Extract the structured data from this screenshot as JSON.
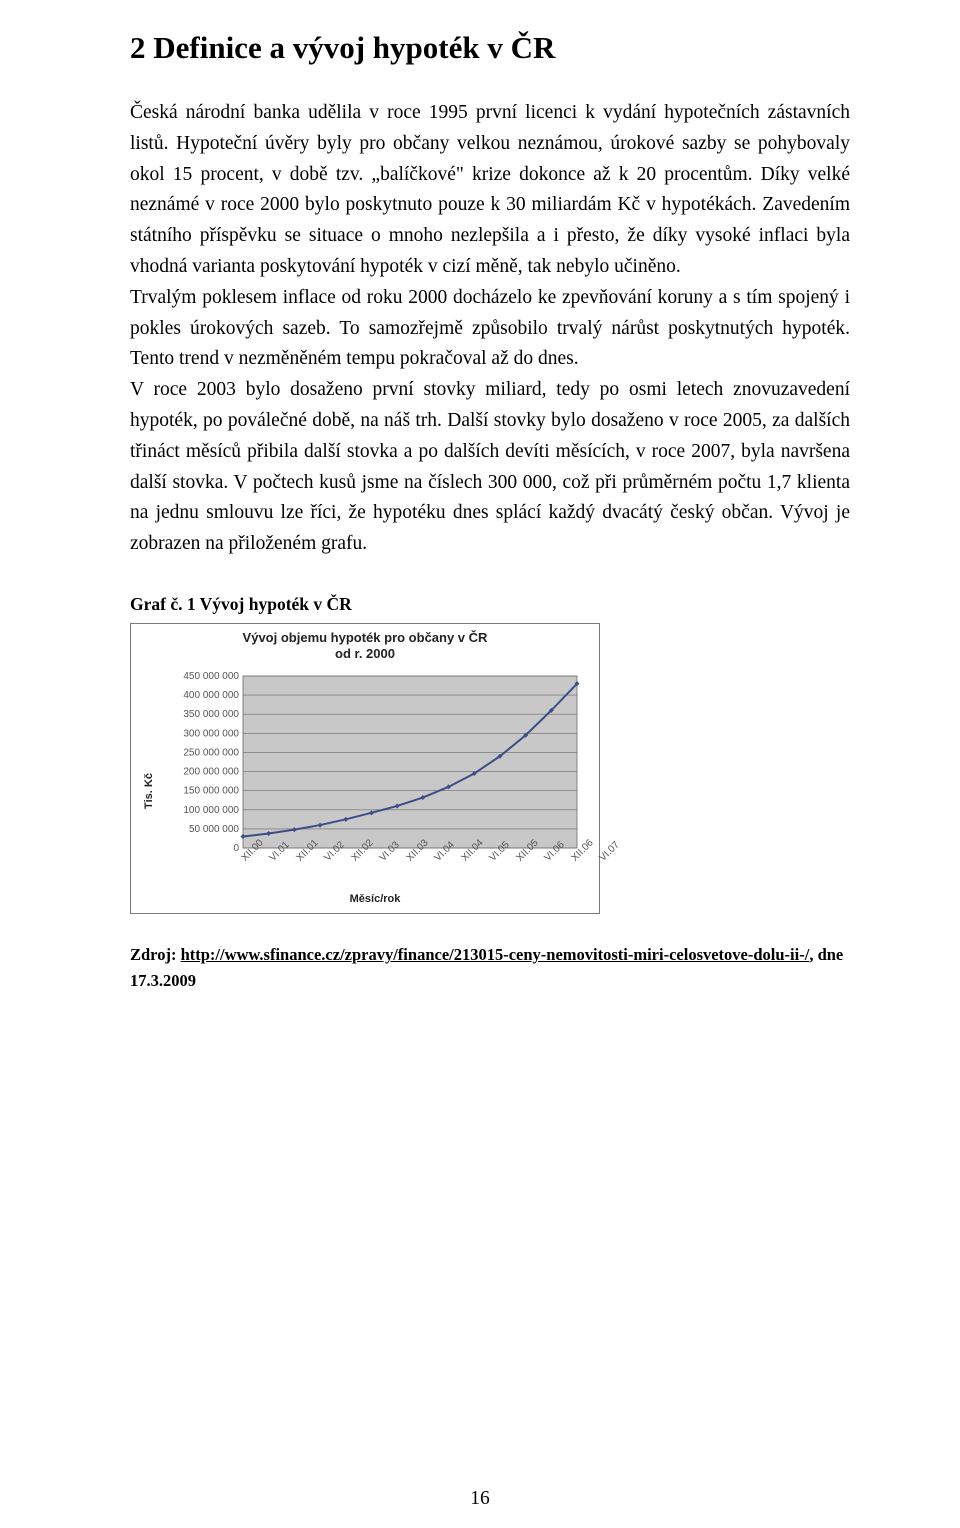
{
  "heading": "2  Definice a vývoj hypoték v ČR",
  "paragraphs": {
    "p1": "Česká národní banka udělila v roce 1995 první licenci k vydání hypotečních zástavních listů. Hypoteční úvěry byly pro občany velkou neznámou, úrokové sazby se pohybovaly okol 15 procent, v době tzv. „balíčkové\" krize dokonce až k 20 procentům. Díky velké neznámé v roce 2000 bylo poskytnuto pouze k 30 miliardám Kč v hypotékách. Zavedením státního příspěvku se situace o mnoho nezlepšila a i přesto, že díky vysoké inflaci byla vhodná varianta poskytování hypoték v cizí měně, tak nebylo učiněno.",
    "p2": "Trvalým poklesem inflace od roku 2000 docházelo ke zpevňování koruny a s tím spojený i pokles úrokových sazeb. To samozřejmě způsobilo trvalý nárůst poskytnutých hypoték. Tento trend v nezměněném tempu pokračoval až do dnes.",
    "p3": "V roce 2003 bylo dosaženo první stovky miliard, tedy po osmi letech znovuzavedení hypoték, po poválečné době, na náš trh. Další stovky bylo dosaženo v roce 2005, za dalších třináct měsíců přibila další stovka a po dalších devíti měsících, v roce 2007, byla navršena další stovka. V počtech kusů jsme na číslech 300 000, což při průměrném počtu 1,7 klienta na jednu smlouvu lze říci, že hypotéku dnes splácí každý dvacátý český občan. Vývoj je zobrazen na přiloženém grafu."
  },
  "graf_label": "Graf č. 1 Vývoj hypoték v ČR",
  "chart": {
    "type": "line",
    "title_line1": "Vývoj objemu hypoték pro občany v ČR",
    "title_line2": "od r. 2000",
    "title_fontsize": 13,
    "ylabel": "Tis. Kč",
    "xlabel": "Měsíc/rok",
    "label_fontsize": 11,
    "x_categories": [
      "XII.00",
      "VI.01",
      "XII.01",
      "VI.02",
      "XII.02",
      "VI.03",
      "XII.03",
      "VI.04",
      "XII.04",
      "VI.05",
      "XII.05",
      "VI.06",
      "XII.06",
      "VI.07"
    ],
    "y_values": [
      30000000,
      38000000,
      48000000,
      60000000,
      75000000,
      92000000,
      110000000,
      132000000,
      160000000,
      195000000,
      240000000,
      295000000,
      360000000,
      430000000
    ],
    "ylim": [
      0,
      450000000
    ],
    "ytick_step": 50000000,
    "ytick_labels": [
      "0",
      "50 000 000",
      "100 000 000",
      "150 000 000",
      "200 000 000",
      "250 000 000",
      "300 000 000",
      "350 000 000",
      "400 000 000",
      "450 000 000"
    ],
    "line_color": "#3b4e87",
    "line_width": 2,
    "marker": "diamond",
    "marker_size": 5,
    "marker_color": "#3b4e87",
    "background_color": "#ffffff",
    "plot_bg_color": "#c8c8c8",
    "grid_color": "#6b6b6b",
    "border_color": "#7a7a7a",
    "tick_label_color": "#555555",
    "tick_font_size": 10
  },
  "source": {
    "prefix": "Zdroj: ",
    "url_text": "http://www.sfinance.cz/zpravy/finance/213015-ceny-nemovitosti-miri-celosvetove-dolu-ii-/",
    "suffix": ", dne 17.3.2009"
  },
  "page_number": "16"
}
